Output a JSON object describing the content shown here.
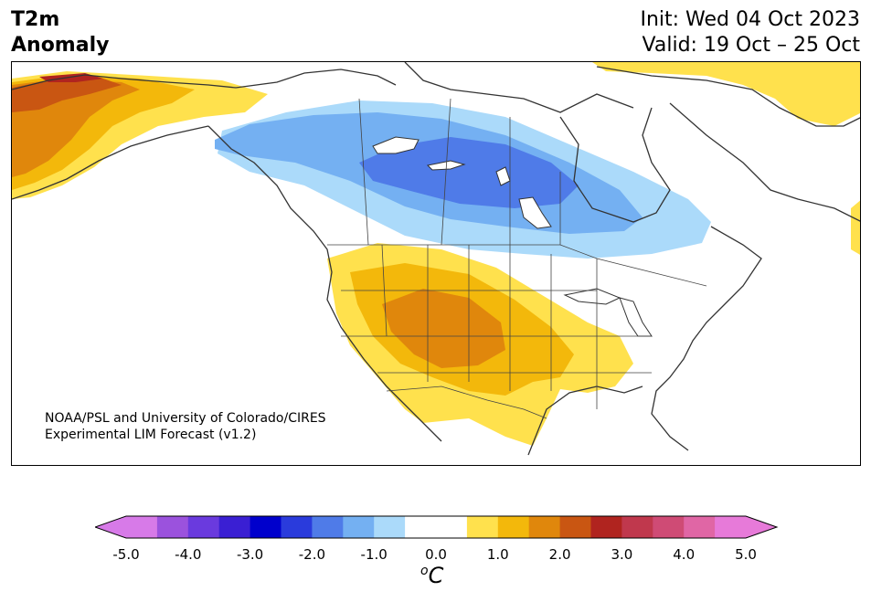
{
  "title": {
    "line1": "T2m",
    "line2": "Anomaly"
  },
  "dates": {
    "init": "Init: Wed 04 Oct 2023",
    "valid": "Valid: 19 Oct – 25 Oct"
  },
  "credit": {
    "line1": "NOAA/PSL and University of Colorado/CIRES",
    "line2": "Experimental LIM Forecast (v1.2)"
  },
  "colorbar": {
    "unit_symbol": "o",
    "unit_letter": "C",
    "tick_labels": [
      "-5.0",
      "-4.0",
      "-3.0",
      "-2.0",
      "-1.0",
      "0.0",
      "1.0",
      "2.0",
      "3.0",
      "4.0",
      "5.0"
    ],
    "bins": [
      "#d77ae8",
      "#9b52dd",
      "#6a3ade",
      "#3a1fd3",
      "#0000cc",
      "#2a3bdc",
      "#4f7be8",
      "#74b0f2",
      "#abdafa",
      "#ffffff",
      "#ffffff",
      "#ffe14d",
      "#f3b80b",
      "#e0870c",
      "#c95612",
      "#b0241f",
      "#c0384d",
      "#cf4b75",
      "#e066a5",
      "#e77ad9"
    ],
    "under_color": "#d77ae8",
    "over_color": "#e77ad9"
  },
  "map_colors": {
    "land": "#ffffff",
    "coast": "#333333",
    "cold_1": "#abdafa",
    "cold_2": "#74b0f2",
    "cold_3": "#4f7be8",
    "warm_1": "#ffe14d",
    "warm_2": "#f3b80b",
    "warm_3": "#e0870c",
    "warm_4": "#c95612",
    "warm_5": "#b0241f"
  }
}
